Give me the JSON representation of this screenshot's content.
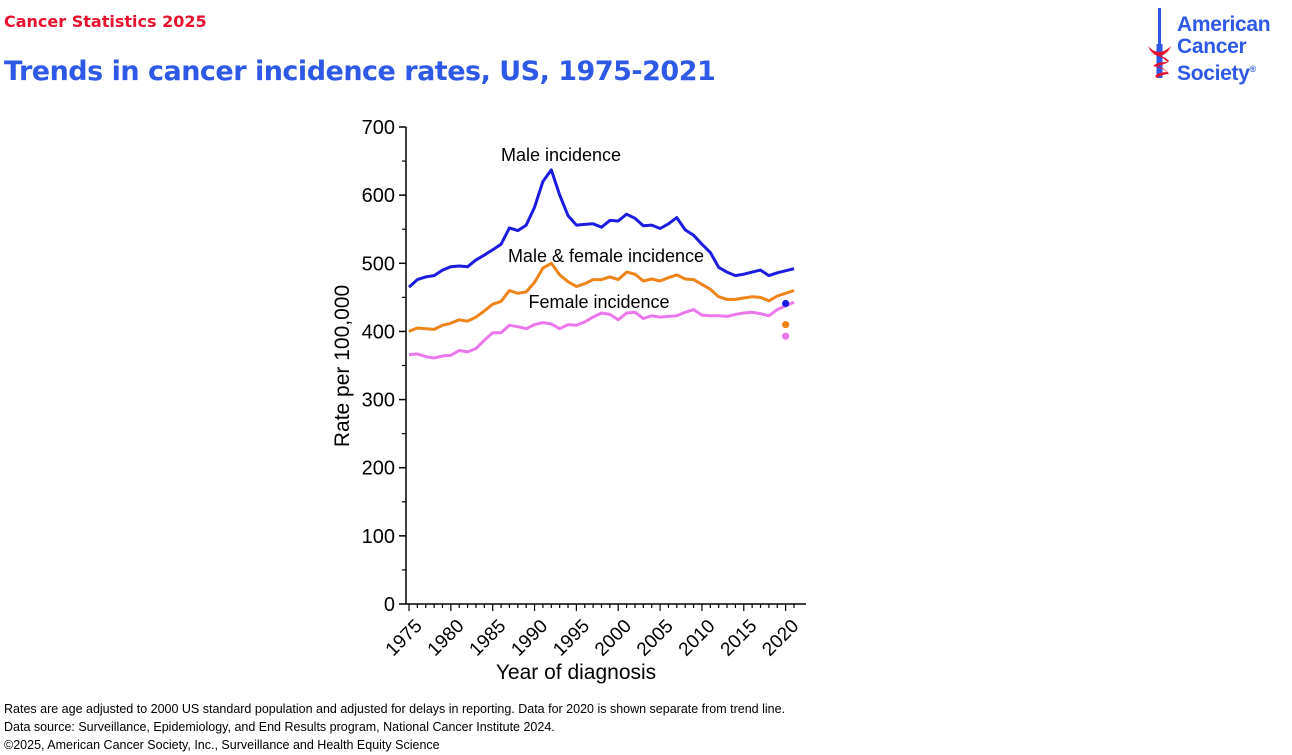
{
  "header": {
    "kicker": "Cancer Statistics 2025",
    "title": "Trends in cancer incidence rates, US, 1975-2021"
  },
  "logo": {
    "lines": [
      "American",
      "Cancer",
      "Society"
    ],
    "registered": "®",
    "color": "#2e59e6",
    "accent": "#e8112d"
  },
  "chart_data": {
    "type": "line",
    "xlabel": "Year of diagnosis",
    "ylabel": "Rate per 100,000",
    "xlim": [
      1975,
      2021
    ],
    "ylim": [
      0,
      700
    ],
    "x_ticks": [
      1975,
      1980,
      1985,
      1990,
      1995,
      2000,
      2005,
      2010,
      2015,
      2020
    ],
    "y_ticks": [
      0,
      100,
      200,
      300,
      400,
      500,
      600,
      700
    ],
    "grid": false,
    "legend": "none",
    "x": [
      1975,
      1976,
      1977,
      1978,
      1979,
      1980,
      1981,
      1982,
      1983,
      1984,
      1985,
      1986,
      1987,
      1988,
      1989,
      1990,
      1991,
      1992,
      1993,
      1994,
      1995,
      1996,
      1997,
      1998,
      1999,
      2000,
      2001,
      2002,
      2003,
      2004,
      2005,
      2006,
      2007,
      2008,
      2009,
      2010,
      2011,
      2012,
      2013,
      2014,
      2015,
      2016,
      2017,
      2018,
      2019,
      2021
    ],
    "series": [
      {
        "name": "Male incidence",
        "color": "#1c1ce0",
        "values": [
          465,
          476,
          480,
          482,
          490,
          495,
          496,
          495,
          505,
          512,
          520,
          528,
          552,
          548,
          556,
          582,
          620,
          637,
          600,
          570,
          556,
          557,
          558,
          553,
          563,
          562,
          572,
          566,
          555,
          556,
          551,
          558,
          567,
          549,
          541,
          528,
          516,
          494,
          487,
          482,
          484,
          487,
          490,
          482,
          486,
          492
        ],
        "point_2020": 441
      },
      {
        "name": "Male & female incidence",
        "color": "#ee8318",
        "values": [
          400,
          405,
          404,
          403,
          409,
          412,
          417,
          415,
          421,
          430,
          440,
          444,
          460,
          456,
          458,
          472,
          493,
          500,
          483,
          473,
          466,
          470,
          476,
          476,
          480,
          476,
          487,
          484,
          474,
          477,
          474,
          479,
          483,
          477,
          476,
          469,
          462,
          451,
          447,
          447,
          449,
          451,
          450,
          445,
          452,
          460
        ],
        "point_2020": 410
      },
      {
        "name": "Female incidence",
        "color": "#ea78ea",
        "values": [
          366,
          367,
          363,
          361,
          364,
          365,
          372,
          370,
          375,
          387,
          398,
          398,
          409,
          407,
          404,
          410,
          413,
          411,
          404,
          410,
          409,
          414,
          421,
          427,
          425,
          417,
          427,
          428,
          419,
          423,
          421,
          422,
          423,
          428,
          432,
          424,
          423,
          423,
          422,
          425,
          427,
          428,
          426,
          423,
          432,
          443
        ],
        "point_2020": 393
      }
    ]
  },
  "footnotes": [
    "Rates are age adjusted to 2000 US standard population and adjusted for delays in reporting. Data for 2020 is shown separate from trend line.",
    "Data source: Surveillance, Epidemiology, and End Results program, National Cancer Institute 2024.",
    "©2025, American Cancer Society, Inc., Surveillance and Health Equity Science"
  ]
}
